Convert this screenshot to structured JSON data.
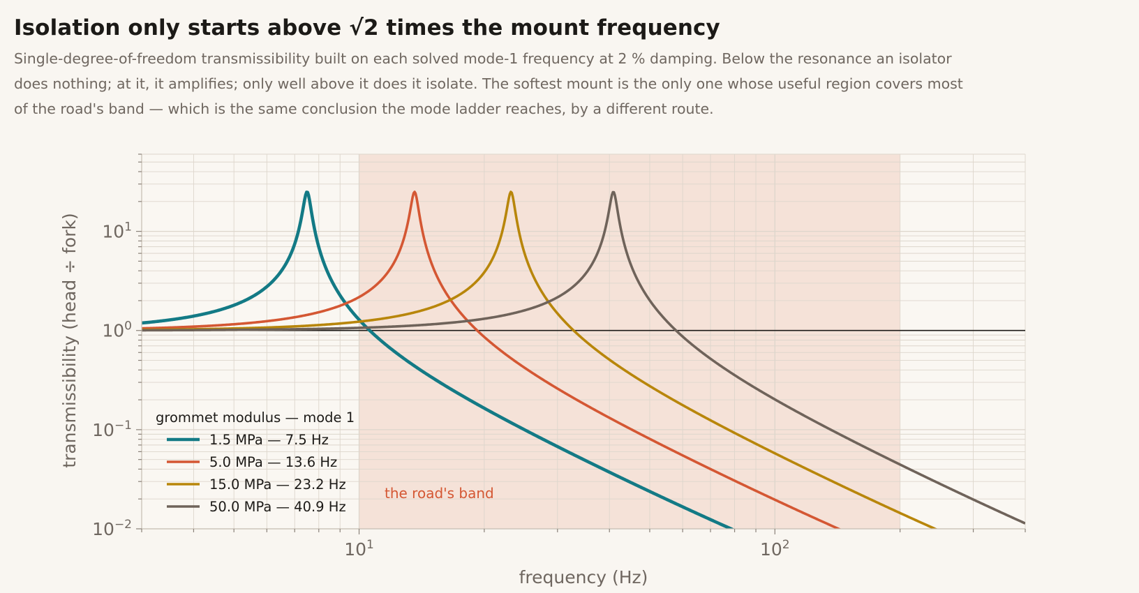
{
  "header": {
    "title": "Isolation only starts above √2 times the mount frequency",
    "subtitle": "Single-degree-of-freedom transmissibility built on each solved mode-1 frequency at 2 % damping. Below the resonance an isolator does nothing; at it, it amplifies; only well above it does it isolate. The softest mount is the only one whose useful region covers most of the road's band — which is the same conclusion the mode ladder reaches, by a different route."
  },
  "chart_data": {
    "type": "line",
    "xscale": "log",
    "yscale": "log",
    "xlabel": "frequency  (Hz)",
    "ylabel": "transmissibility  (head ÷ fork)",
    "xlim": [
      3,
      400
    ],
    "ylim": [
      0.01,
      60
    ],
    "grid": true,
    "x_ticks": [
      {
        "value": 10,
        "base": "10",
        "exp": "1"
      },
      {
        "value": 100,
        "base": "10",
        "exp": "2"
      }
    ],
    "y_ticks": [
      {
        "value": 0.01,
        "base": "10",
        "exp": "−2"
      },
      {
        "value": 0.1,
        "base": "10",
        "exp": "−1"
      },
      {
        "value": 1,
        "base": "10",
        "exp": "0"
      },
      {
        "value": 10,
        "base": "10",
        "exp": "1"
      }
    ],
    "damping_ratio": 0.02,
    "reference_line": 1,
    "band": {
      "label": "the road's band",
      "x_range": [
        10,
        200
      ],
      "color": "#d9532f"
    },
    "legend": {
      "title": "grommet modulus — mode 1",
      "position": "lower-left"
    },
    "series": [
      {
        "name": "1.5 MPa — 7.5 Hz",
        "natural_frequency": 7.5,
        "color": "#137a85"
      },
      {
        "name": "5.0 MPa — 13.6 Hz",
        "natural_frequency": 13.6,
        "color": "#d45733"
      },
      {
        "name": "15.0 MPa — 23.2 Hz",
        "natural_frequency": 23.2,
        "color": "#b8860b"
      },
      {
        "name": "50.0 MPa — 40.9 Hz",
        "natural_frequency": 40.9,
        "color": "#6f635a"
      }
    ]
  }
}
